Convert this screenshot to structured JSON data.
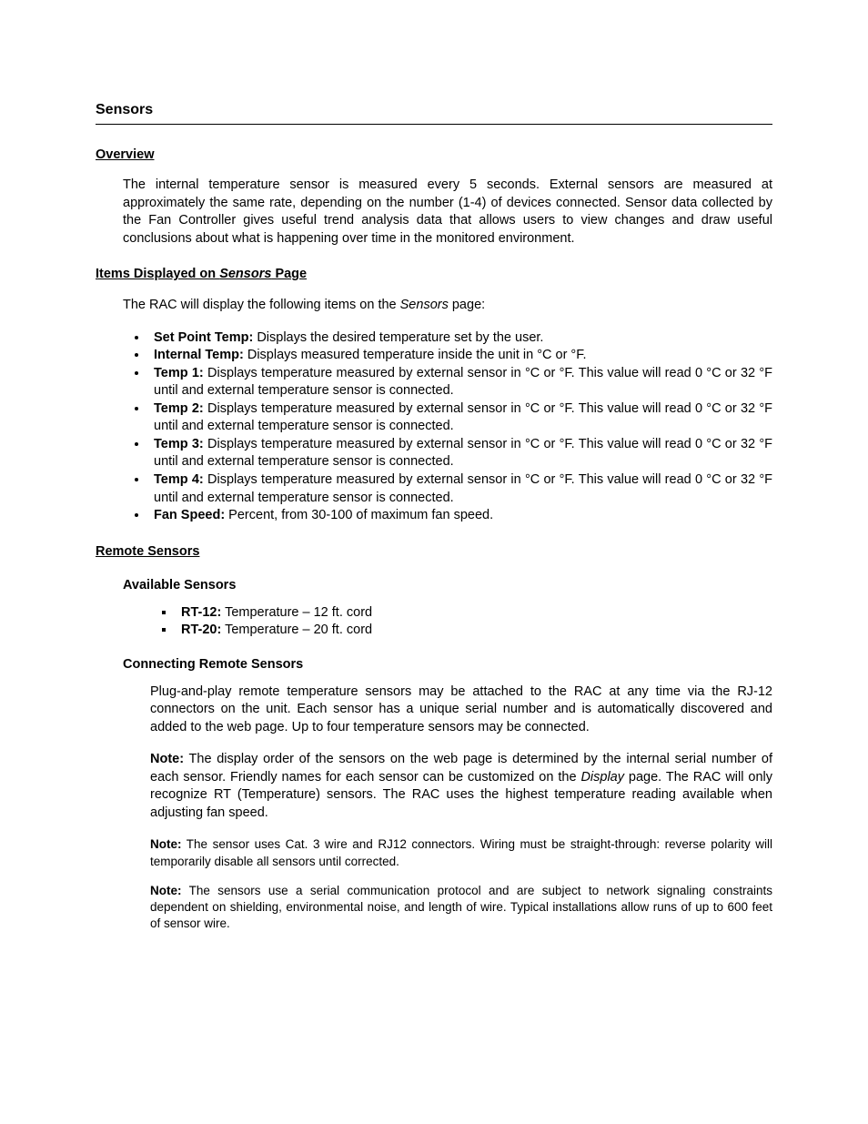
{
  "section_title": "Sensors",
  "overview": {
    "heading": "Overview",
    "para": "The internal temperature sensor is measured every 5 seconds.  External sensors are measured at approximately the same rate, depending on the number (1-4) of devices connected.  Sensor data collected by the Fan Controller gives useful trend analysis data that allows users to view changes and draw useful conclusions about what is happening over time in the monitored environment."
  },
  "items_displayed": {
    "heading_pre": "Items Displayed on ",
    "heading_em": "Sensors",
    "heading_post": " Page",
    "intro_pre": "The RAC will display the following items on the ",
    "intro_em": "Sensors",
    "intro_post": " page:",
    "bullets": [
      {
        "label": "Set Point Temp:",
        "text": " Displays the desired temperature set by the user."
      },
      {
        "label": "Internal Temp:",
        "text": " Displays measured temperature inside the unit in °C or °F."
      },
      {
        "label": "Temp 1:",
        "text": " Displays temperature measured by external sensor in °C or °F.  This value will read 0 °C or 32 °F until and external temperature sensor is connected."
      },
      {
        "label": "Temp 2:",
        "text": " Displays temperature measured by external sensor in °C or °F.  This value will read 0 °C or 32 °F until and external temperature sensor is connected."
      },
      {
        "label": "Temp 3:",
        "text": " Displays temperature measured by external sensor in °C or °F.  This value will read 0 °C or 32 °F until and external temperature sensor is connected."
      },
      {
        "label": "Temp 4:",
        "text": " Displays temperature measured by external sensor in °C or °F.  This value will read 0 °C or 32 °F until and external temperature sensor is connected."
      },
      {
        "label": "Fan Speed:",
        "text": " Percent, from 30-100 of maximum fan speed."
      }
    ]
  },
  "remote_sensors": {
    "heading": "Remote Sensors",
    "available": {
      "heading": "Available Sensors",
      "items": [
        {
          "label": "RT-12:",
          "text": " Temperature – 12 ft. cord"
        },
        {
          "label": "RT-20:",
          "text": " Temperature – 20 ft. cord"
        }
      ]
    },
    "connecting": {
      "heading": "Connecting Remote Sensors",
      "para": "Plug-and-play remote temperature sensors may be attached to the RAC at any time via the RJ-12 connectors on the unit.  Each sensor has a unique serial number and is automatically discovered and added to the web page.  Up to four temperature sensors may be connected.",
      "note1_label": "Note:",
      "note1_pre": " The display order of the sensors on the web page is determined by the internal serial number of each sensor.  Friendly names for each sensor can be customized on the ",
      "note1_em": "Display",
      "note1_post": " page.  The RAC will only recognize RT (Temperature) sensors.  The RAC uses the highest temperature reading available when adjusting fan speed.",
      "note2_label": "Note:",
      "note2_text": " The sensor uses Cat. 3 wire and RJ12 connectors.  Wiring must be straight-through: reverse polarity will temporarily disable all sensors until corrected.",
      "note3_label": "Note:",
      "note3_text": " The sensors use a serial communication protocol and are subject to network signaling constraints dependent on shielding, environmental noise, and length of wire.  Typical installations allow runs of up to 600 feet of sensor wire."
    }
  }
}
